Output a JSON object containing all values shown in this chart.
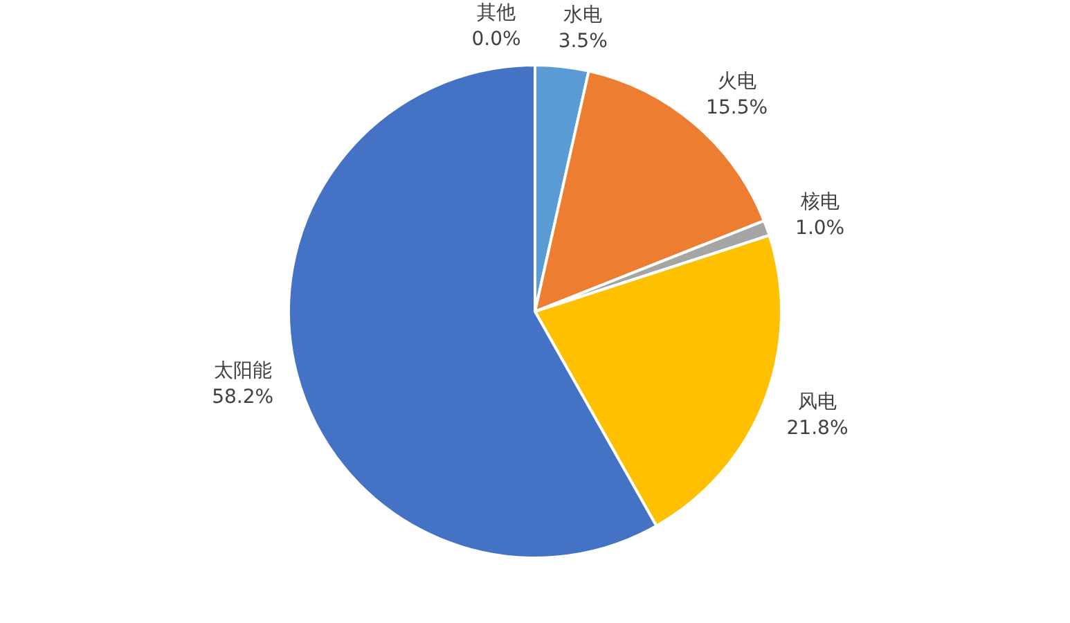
{
  "chart_data": {
    "type": "pie",
    "categories": [
      "水电",
      "火电",
      "核电",
      "风电",
      "太阳能",
      "其他"
    ],
    "values": [
      3.5,
      15.5,
      1.0,
      21.8,
      58.2,
      0.0
    ],
    "value_labels": [
      "3.5%",
      "15.5%",
      "1.0%",
      "21.8%",
      "58.2%",
      "0.0%"
    ],
    "colors": [
      "#5b9bd5",
      "#ed7d31",
      "#a5a5a5",
      "#ffc000",
      "#4472c4",
      "#70ad47"
    ],
    "legend": false
  }
}
